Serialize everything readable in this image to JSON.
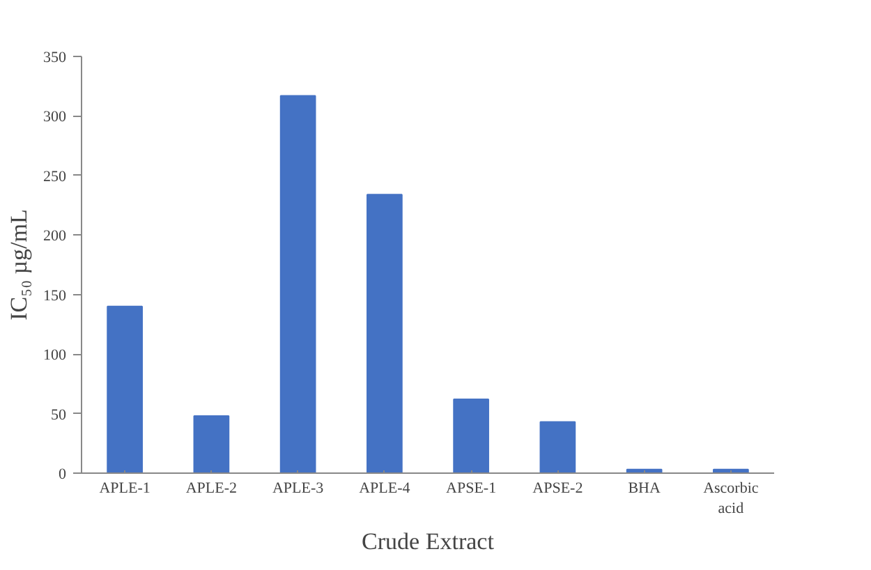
{
  "chart_data": {
    "type": "bar",
    "xlabel": "Crude Extract",
    "ylabel": "IC₅₀ µg/mL",
    "categories": [
      "APLE-1",
      "APLE-2",
      "APLE-3",
      "APLE-4",
      "APSE-1",
      "APSE-2",
      "BHA",
      "Ascorbic acid"
    ],
    "values": [
      140,
      48,
      317,
      234,
      62,
      43,
      3,
      3
    ],
    "color": "#4472c4",
    "ylim": [
      0,
      350
    ],
    "yticks": [
      0,
      50,
      100,
      150,
      200,
      250,
      300,
      350
    ],
    "grid": false
  }
}
